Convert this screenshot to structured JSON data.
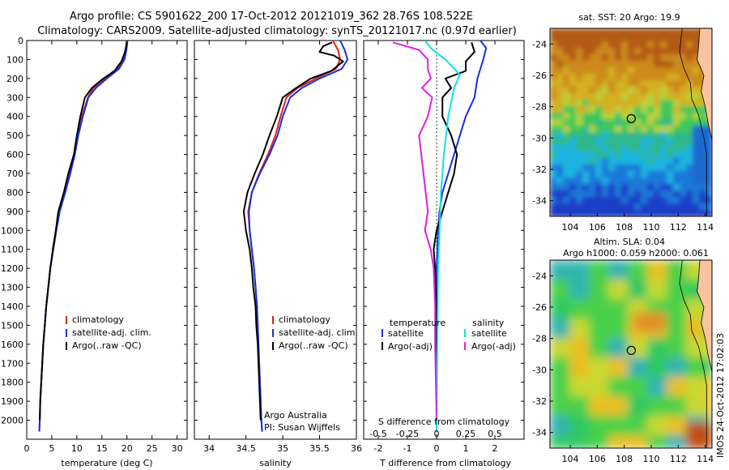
{
  "header": {
    "line1": "Argo profile: CS 5901622_200 17-Oct-2012 20121019_362 28.76S 108.522E",
    "line2": "Climatology: CARS2009. Satellite-adjusted climatology: synTS_20121017.nc (0.97d earlier)"
  },
  "watermark": "IMOS 24-Oct-2012 17:02:03",
  "colors": {
    "climatology": "#e02020",
    "satellite": "#1a2ee0",
    "argo": "#000000",
    "sat_salinity": "#10e0e8",
    "argo_salinity": "#e020e0"
  },
  "chart_data": [
    {
      "id": "temperature",
      "type": "line",
      "xlabel": "temperature (deg C)",
      "xlim": [
        0,
        32
      ],
      "xticks": [
        0,
        5,
        10,
        15,
        20,
        25,
        30
      ],
      "ylim": [
        0,
        2100
      ],
      "yticks": [
        0,
        100,
        200,
        300,
        400,
        500,
        600,
        700,
        800,
        900,
        1000,
        1100,
        1200,
        1300,
        1400,
        1500,
        1600,
        1700,
        1800,
        1900,
        2000
      ],
      "legend": [
        "climatology",
        "satellite-adj. clim.",
        "Argo(..raw -QC)"
      ],
      "series": [
        {
          "name": "climatology",
          "color": "#e02020",
          "points": [
            [
              19.9,
              0
            ],
            [
              19.8,
              50
            ],
            [
              19.3,
              100
            ],
            [
              18.0,
              150
            ],
            [
              15.5,
              200
            ],
            [
              13.3,
              250
            ],
            [
              12.2,
              300
            ],
            [
              11.0,
              400
            ],
            [
              10.2,
              500
            ],
            [
              9.5,
              600
            ],
            [
              8.6,
              700
            ],
            [
              7.6,
              800
            ],
            [
              6.5,
              900
            ],
            [
              5.9,
              1000
            ],
            [
              5.3,
              1100
            ],
            [
              4.7,
              1200
            ],
            [
              4.3,
              1300
            ],
            [
              3.9,
              1400
            ],
            [
              3.6,
              1500
            ],
            [
              3.3,
              1600
            ],
            [
              3.1,
              1700
            ],
            [
              2.9,
              1800
            ],
            [
              2.7,
              1900
            ],
            [
              2.6,
              2000
            ],
            [
              2.5,
              2060
            ]
          ]
        },
        {
          "name": "satellite-adj. clim.",
          "color": "#1a2ee0",
          "points": [
            [
              20.1,
              0
            ],
            [
              19.9,
              50
            ],
            [
              19.5,
              100
            ],
            [
              18.4,
              150
            ],
            [
              16.0,
              200
            ],
            [
              13.8,
              250
            ],
            [
              12.3,
              300
            ],
            [
              11.2,
              400
            ],
            [
              10.3,
              500
            ],
            [
              9.6,
              600
            ],
            [
              8.7,
              700
            ],
            [
              7.7,
              800
            ],
            [
              6.6,
              900
            ],
            [
              5.9,
              1000
            ],
            [
              5.3,
              1100
            ],
            [
              4.7,
              1200
            ],
            [
              4.3,
              1300
            ],
            [
              3.9,
              1400
            ],
            [
              3.6,
              1500
            ],
            [
              3.3,
              1600
            ],
            [
              3.1,
              1700
            ],
            [
              2.9,
              1800
            ],
            [
              2.7,
              1900
            ],
            [
              2.6,
              2000
            ],
            [
              2.5,
              2060
            ]
          ]
        },
        {
          "name": "Argo(..raw -QC)",
          "color": "#000000",
          "points": [
            [
              20.0,
              10
            ],
            [
              19.6,
              60
            ],
            [
              18.9,
              110
            ],
            [
              17.5,
              160
            ],
            [
              14.8,
              210
            ],
            [
              13.0,
              250
            ],
            [
              11.6,
              300
            ],
            [
              10.7,
              400
            ],
            [
              10.0,
              500
            ],
            [
              9.4,
              600
            ],
            [
              8.3,
              700
            ],
            [
              7.4,
              800
            ],
            [
              6.3,
              900
            ],
            [
              5.8,
              1000
            ],
            [
              5.2,
              1100
            ],
            [
              4.7,
              1200
            ],
            [
              4.3,
              1300
            ],
            [
              3.9,
              1400
            ],
            [
              3.6,
              1500
            ],
            [
              3.3,
              1600
            ],
            [
              3.1,
              1700
            ],
            [
              2.9,
              1800
            ],
            [
              2.7,
              1900
            ],
            [
              2.6,
              2000
            ]
          ]
        }
      ]
    },
    {
      "id": "salinity",
      "type": "line",
      "xlabel": "salinity",
      "xlim": [
        33.8,
        36.0
      ],
      "xticks": [
        34,
        34.5,
        35,
        35.5,
        36
      ],
      "ylim": [
        0,
        2100
      ],
      "legend": [
        "climatology",
        "satellite-adj. clim.",
        "Argo(..raw -QC)"
      ],
      "annotation": [
        "Argo Australia",
        "PI: Susan Wijffels"
      ],
      "series": [
        {
          "name": "climatology",
          "color": "#e02020",
          "points": [
            [
              35.68,
              0
            ],
            [
              35.75,
              50
            ],
            [
              35.78,
              100
            ],
            [
              35.72,
              150
            ],
            [
              35.45,
              200
            ],
            [
              35.2,
              250
            ],
            [
              35.05,
              300
            ],
            [
              34.97,
              400
            ],
            [
              34.9,
              500
            ],
            [
              34.8,
              600
            ],
            [
              34.68,
              700
            ],
            [
              34.58,
              800
            ],
            [
              34.53,
              900
            ],
            [
              34.55,
              1000
            ],
            [
              34.58,
              1100
            ],
            [
              34.61,
              1200
            ],
            [
              34.63,
              1300
            ],
            [
              34.65,
              1400
            ],
            [
              34.66,
              1500
            ],
            [
              34.67,
              1600
            ],
            [
              34.68,
              1700
            ],
            [
              34.69,
              1800
            ],
            [
              34.7,
              1900
            ],
            [
              34.71,
              2000
            ],
            [
              34.72,
              2060
            ]
          ]
        },
        {
          "name": "satellite-adj. clim.",
          "color": "#1a2ee0",
          "points": [
            [
              35.78,
              0
            ],
            [
              35.84,
              50
            ],
            [
              35.88,
              100
            ],
            [
              35.8,
              150
            ],
            [
              35.5,
              200
            ],
            [
              35.26,
              250
            ],
            [
              35.1,
              300
            ],
            [
              35.0,
              400
            ],
            [
              34.93,
              500
            ],
            [
              34.82,
              600
            ],
            [
              34.69,
              700
            ],
            [
              34.58,
              800
            ],
            [
              34.54,
              900
            ],
            [
              34.55,
              1000
            ],
            [
              34.58,
              1100
            ],
            [
              34.61,
              1200
            ],
            [
              34.63,
              1300
            ],
            [
              34.65,
              1400
            ],
            [
              34.66,
              1500
            ],
            [
              34.67,
              1600
            ],
            [
              34.68,
              1700
            ],
            [
              34.69,
              1800
            ],
            [
              34.7,
              1900
            ],
            [
              34.71,
              2000
            ],
            [
              34.72,
              2060
            ]
          ]
        },
        {
          "name": "Argo(..raw -QC)",
          "color": "#000000",
          "points": [
            [
              35.67,
              10
            ],
            [
              35.55,
              30
            ],
            [
              35.5,
              60
            ],
            [
              35.7,
              80
            ],
            [
              35.82,
              110
            ],
            [
              35.66,
              160
            ],
            [
              35.38,
              200
            ],
            [
              35.18,
              250
            ],
            [
              35.0,
              300
            ],
            [
              34.92,
              400
            ],
            [
              34.82,
              500
            ],
            [
              34.73,
              600
            ],
            [
              34.62,
              700
            ],
            [
              34.52,
              800
            ],
            [
              34.47,
              900
            ],
            [
              34.5,
              1000
            ],
            [
              34.55,
              1100
            ],
            [
              34.58,
              1200
            ],
            [
              34.6,
              1300
            ],
            [
              34.63,
              1400
            ],
            [
              34.64,
              1500
            ],
            [
              34.66,
              1600
            ],
            [
              34.67,
              1700
            ],
            [
              34.68,
              1800
            ],
            [
              34.69,
              1900
            ],
            [
              34.7,
              2000
            ]
          ]
        }
      ]
    },
    {
      "id": "difference",
      "type": "line",
      "xlabel": "T difference from climatology",
      "xlim": [
        -2.5,
        3.0
      ],
      "xticks": [
        -2,
        -1,
        0,
        1,
        2
      ],
      "top_axis_label": "S difference from climatology",
      "top_ticks": [
        "-0.5",
        "-0.25",
        "0",
        "0.25",
        "0.5"
      ],
      "top_tick_positions": [
        -2,
        -1,
        0,
        1,
        2
      ],
      "ylim": [
        0,
        2100
      ],
      "legend_titles": [
        "temperature",
        "salinity"
      ],
      "legend_left": [
        "satellite",
        "Argo(-adj)"
      ],
      "legend_right": [
        "satellite",
        "Argo(-adj)"
      ],
      "series": [
        {
          "name": "temperature satellite",
          "color": "#1a2ee0",
          "points": [
            [
              1.5,
              0
            ],
            [
              1.7,
              40
            ],
            [
              1.6,
              100
            ],
            [
              1.4,
              200
            ],
            [
              1.3,
              300
            ],
            [
              1.0,
              400
            ],
            [
              0.8,
              500
            ],
            [
              0.6,
              600
            ],
            [
              0.4,
              700
            ],
            [
              0.2,
              800
            ],
            [
              0.1,
              900
            ],
            [
              0.05,
              1000
            ],
            [
              0.0,
              1200
            ],
            [
              0.0,
              1500
            ],
            [
              0.0,
              2060
            ]
          ]
        },
        {
          "name": "temperature Argo(-adj)",
          "color": "#000000",
          "points": [
            [
              1.2,
              10
            ],
            [
              1.3,
              60
            ],
            [
              1.0,
              110
            ],
            [
              1.0,
              160
            ],
            [
              0.3,
              200
            ],
            [
              0.5,
              250
            ],
            [
              0.2,
              300
            ],
            [
              0.2,
              400
            ],
            [
              0.5,
              500
            ],
            [
              0.7,
              600
            ],
            [
              0.6,
              700
            ],
            [
              0.4,
              800
            ],
            [
              0.2,
              900
            ],
            [
              0.0,
              1000
            ],
            [
              -0.1,
              1100
            ],
            [
              -0.05,
              1200
            ],
            [
              0.0,
              1400
            ],
            [
              0.0,
              1600
            ],
            [
              0.0,
              2000
            ]
          ]
        },
        {
          "name": "salinity satellite",
          "color": "#10e0e8",
          "points": [
            [
              -0.4,
              0
            ],
            [
              -0.2,
              40
            ],
            [
              0.3,
              100
            ],
            [
              0.8,
              180
            ],
            [
              0.6,
              250
            ],
            [
              0.4,
              400
            ],
            [
              0.25,
              600
            ],
            [
              0.15,
              800
            ],
            [
              0.1,
              1000
            ],
            [
              0.05,
              1200
            ],
            [
              0.0,
              2060
            ]
          ]
        },
        {
          "name": "salinity Argo(-adj)",
          "color": "#e020e0",
          "points": [
            [
              -1.5,
              10
            ],
            [
              -0.6,
              50
            ],
            [
              -0.3,
              100
            ],
            [
              -0.3,
              150
            ],
            [
              -0.2,
              200
            ],
            [
              -0.5,
              250
            ],
            [
              -0.15,
              300
            ],
            [
              -0.3,
              400
            ],
            [
              -0.6,
              500
            ],
            [
              -0.45,
              700
            ],
            [
              -0.3,
              900
            ],
            [
              -0.4,
              1000
            ],
            [
              -0.2,
              1100
            ],
            [
              -0.1,
              1200
            ],
            [
              -0.05,
              1400
            ],
            [
              -0.05,
              1600
            ],
            [
              0.0,
              2000
            ]
          ]
        }
      ]
    },
    {
      "id": "sst_map",
      "type": "heatmap",
      "title": "sat. SST: 20 Argo: 19.9",
      "xlim": [
        102.5,
        114.5
      ],
      "ylim": [
        -35,
        -23
      ],
      "xticks": [
        104,
        106,
        108,
        110,
        112,
        114
      ],
      "yticks": [
        -24,
        -26,
        -28,
        -30,
        -32,
        -34
      ],
      "marker": [
        108.52,
        -28.76
      ]
    },
    {
      "id": "sla_map",
      "type": "heatmap",
      "title_line1": "Altim. SLA: 0.04",
      "title_line2": "Argo h1000: 0.059 h2000: 0.061",
      "xlim": [
        102.5,
        114.5
      ],
      "ylim": [
        -35,
        -23
      ],
      "xticks": [
        104,
        106,
        108,
        110,
        112,
        114
      ],
      "yticks": [
        -24,
        -26,
        -28,
        -30,
        -32,
        -34
      ],
      "marker": [
        108.52,
        -28.76
      ]
    }
  ]
}
